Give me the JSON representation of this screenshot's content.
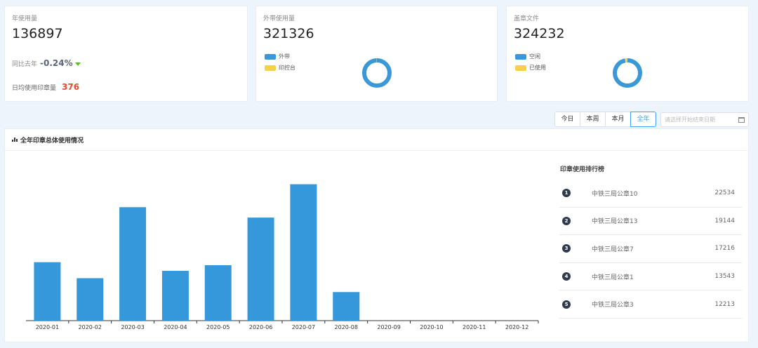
{
  "cards": {
    "annual": {
      "title": "年使用量",
      "value": "136897",
      "yoy_label": "同比去年",
      "yoy_value": "-0.24%",
      "daily_label": "日均使用印章量",
      "daily_value": "376"
    },
    "external": {
      "title": "外带使用量",
      "value": "321326",
      "legend": [
        {
          "label": "外带",
          "color": "#3a98d8"
        },
        {
          "label": "印控台",
          "color": "#f7d04a"
        }
      ],
      "share": [
        0.995,
        0.005
      ]
    },
    "stamped": {
      "title": "盖章文件",
      "value": "324232",
      "legend": [
        {
          "label": "空闲",
          "color": "#3a98d8"
        },
        {
          "label": "已使用",
          "color": "#f7d04a"
        }
      ],
      "share": [
        0.97,
        0.03
      ]
    }
  },
  "filter": {
    "tabs": [
      "今日",
      "本周",
      "本月",
      "全年"
    ],
    "active": "全年",
    "date_placeholder": "请选择开始结束日期"
  },
  "panel": {
    "title": "全年印章总体使用情况"
  },
  "chart_data": {
    "type": "bar",
    "categories": [
      "2020-01",
      "2020-02",
      "2020-03",
      "2020-04",
      "2020-05",
      "2020-06",
      "2020-07",
      "2020-08",
      "2020-09",
      "2020-10",
      "2020-11",
      "2020-12"
    ],
    "values": [
      13500,
      9800,
      26200,
      11500,
      12800,
      23800,
      31500,
      6600,
      0,
      0,
      0,
      0
    ],
    "ylim": [
      0,
      35000
    ],
    "color": "#3498db",
    "grid": false
  },
  "ranking": {
    "title": "印章使用排行榜",
    "items": [
      {
        "rank": "1",
        "name": "中铁三局公章10",
        "value": "22534"
      },
      {
        "rank": "2",
        "name": "中铁三局公章13",
        "value": "19144"
      },
      {
        "rank": "3",
        "name": "中铁三局公章7",
        "value": "17216"
      },
      {
        "rank": "4",
        "name": "中铁三局公章1",
        "value": "13543"
      },
      {
        "rank": "5",
        "name": "中铁三局公章3",
        "value": "12213"
      }
    ]
  }
}
